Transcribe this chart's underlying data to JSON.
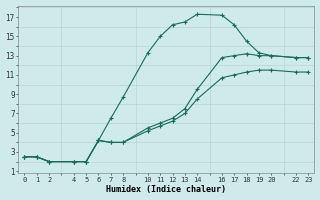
{
  "xlabel": "Humidex (Indice chaleur)",
  "bg_color": "#ceeaea",
  "line_color": "#1a6b5a",
  "grid_major_color": "#b8d4d4",
  "grid_minor_color": "#ceeaea",
  "xlim": [
    -0.5,
    23.5
  ],
  "ylim": [
    0.8,
    18.2
  ],
  "xticks": [
    0,
    1,
    2,
    4,
    5,
    6,
    7,
    8,
    10,
    11,
    12,
    13,
    14,
    16,
    17,
    18,
    19,
    20,
    22,
    23
  ],
  "yticks": [
    1,
    3,
    5,
    7,
    9,
    11,
    13,
    15,
    17
  ],
  "lines": [
    {
      "x": [
        0,
        1,
        2,
        4,
        5,
        6,
        7,
        8,
        10,
        11,
        12,
        13,
        14,
        16,
        17,
        18,
        19,
        20,
        22,
        23
      ],
      "y": [
        2.5,
        2.5,
        2.0,
        2.0,
        2.0,
        4.2,
        6.5,
        8.7,
        13.3,
        15.0,
        16.2,
        16.5,
        17.3,
        17.2,
        16.2,
        14.5,
        13.3,
        13.0,
        12.8,
        12.8
      ]
    },
    {
      "x": [
        0,
        1,
        2,
        4,
        5,
        6,
        7,
        8,
        10,
        11,
        12,
        13,
        14,
        16,
        17,
        18,
        19,
        20,
        22,
        23
      ],
      "y": [
        2.5,
        2.5,
        2.0,
        2.0,
        2.0,
        4.2,
        4.0,
        4.0,
        5.5,
        6.0,
        6.5,
        7.5,
        9.5,
        12.8,
        13.0,
        13.2,
        13.0,
        13.0,
        12.8,
        12.8
      ]
    },
    {
      "x": [
        0,
        1,
        2,
        4,
        5,
        6,
        7,
        8,
        10,
        11,
        12,
        13,
        14,
        16,
        17,
        18,
        19,
        20,
        22,
        23
      ],
      "y": [
        2.5,
        2.5,
        2.0,
        2.0,
        2.0,
        4.2,
        4.0,
        4.0,
        5.2,
        5.7,
        6.2,
        7.0,
        8.5,
        10.7,
        11.0,
        11.3,
        11.5,
        11.5,
        11.3,
        11.3
      ]
    }
  ]
}
